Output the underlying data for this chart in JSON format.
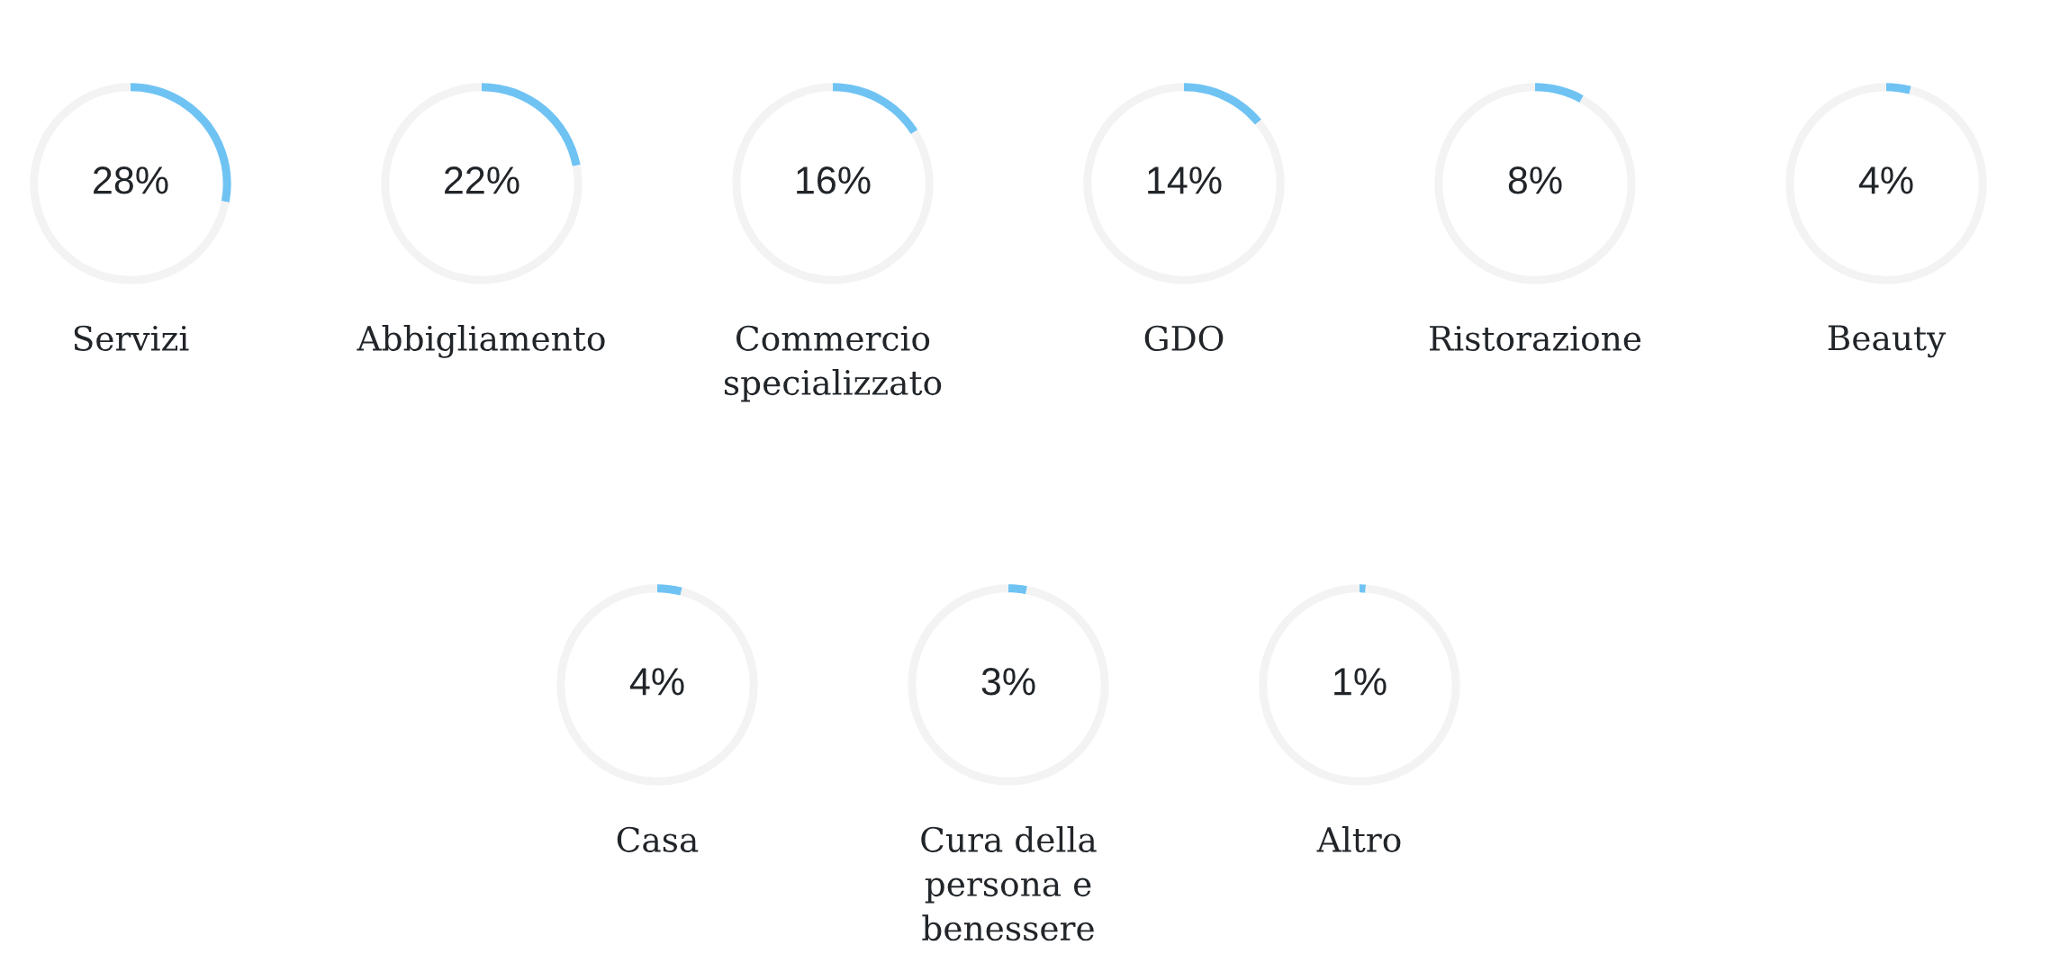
{
  "chart_data": [
    {
      "type": "donut",
      "title": "Servizi",
      "categories": [
        null,
        null
      ],
      "values": [
        28,
        72
      ],
      "colors": [
        "#6fc3f3",
        "#f3f3f3"
      ],
      "annotations": [
        "28%"
      ]
    },
    {
      "type": "donut",
      "title": "Abbigliamento",
      "categories": [
        null,
        null
      ],
      "values": [
        22,
        78
      ],
      "colors": [
        "#6fc3f3",
        "#f3f3f3"
      ],
      "annotations": [
        "22%"
      ]
    },
    {
      "type": "donut",
      "title": "Commercio\nspecializzato",
      "categories": [
        null,
        null
      ],
      "values": [
        16,
        84
      ],
      "colors": [
        "#6fc3f3",
        "#f3f3f3"
      ],
      "annotations": [
        "16%"
      ]
    },
    {
      "type": "donut",
      "title": "GDO",
      "categories": [
        null,
        null
      ],
      "values": [
        14,
        86
      ],
      "colors": [
        "#6fc3f3",
        "#f3f3f3"
      ],
      "annotations": [
        "14%"
      ]
    },
    {
      "type": "donut",
      "title": "Ristorazione",
      "categories": [
        null,
        null
      ],
      "values": [
        8,
        92
      ],
      "colors": [
        "#6fc3f3",
        "#f3f3f3"
      ],
      "annotations": [
        "8%"
      ]
    },
    {
      "type": "donut",
      "title": "Beauty",
      "categories": [
        null,
        null
      ],
      "values": [
        4,
        96
      ],
      "colors": [
        "#6fc3f3",
        "#f3f3f3"
      ],
      "annotations": [
        "4%"
      ]
    },
    {
      "type": "donut",
      "title": "Casa",
      "categories": [
        null,
        null
      ],
      "values": [
        4,
        96
      ],
      "colors": [
        "#6fc3f3",
        "#f3f3f3"
      ],
      "annotations": [
        "4%"
      ]
    },
    {
      "type": "donut",
      "title": "Cura della\npersona e\nbenessere",
      "categories": [
        null,
        null
      ],
      "values": [
        3,
        97
      ],
      "colors": [
        "#6fc3f3",
        "#f3f3f3"
      ],
      "annotations": [
        "3%"
      ]
    },
    {
      "type": "donut",
      "title": "Altro",
      "categories": [
        null,
        null
      ],
      "values": [
        1,
        99
      ],
      "colors": [
        "#6fc3f3",
        "#f3f3f3"
      ],
      "annotations": [
        "1%"
      ]
    }
  ]
}
